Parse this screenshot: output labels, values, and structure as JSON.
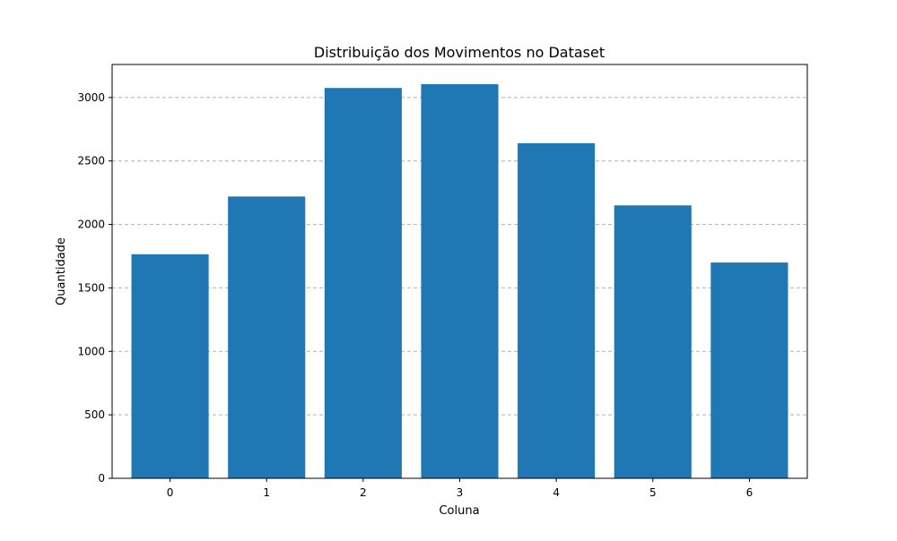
{
  "chart_data": {
    "type": "bar",
    "title": "Distribuição dos Movimentos no Dataset",
    "xlabel": "Coluna",
    "ylabel": "Quantidade",
    "categories": [
      "0",
      "1",
      "2",
      "3",
      "4",
      "5",
      "6"
    ],
    "values": [
      1765,
      2220,
      3075,
      3105,
      2640,
      2150,
      1700
    ],
    "ylim": [
      0,
      3260
    ],
    "yticks": [
      "0",
      "500",
      "1000",
      "1500",
      "2000",
      "2500",
      "3000"
    ],
    "grid": "y-dashed",
    "bar_color": "#1f77b4",
    "grid_color": "#b0b0b0"
  }
}
